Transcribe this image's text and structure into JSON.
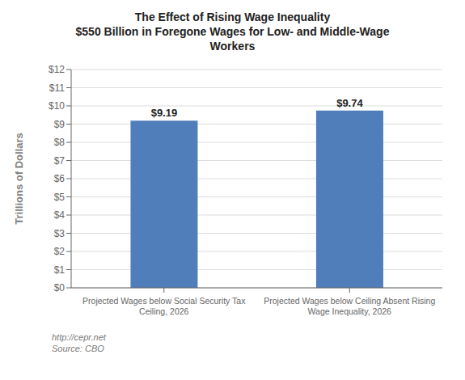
{
  "chart_data": {
    "type": "bar",
    "title": "The Effect of Rising Wage Inequality\n$550 Billion in Foregone Wages for Low- and Middle-Wage\nWorkers",
    "categories": [
      "Projected Wages below Social Security Tax\nCeiling, 2026",
      "Projected Wages below Ceiling Absent Rising\nWage Inequality, 2026"
    ],
    "values": [
      9.19,
      9.74
    ],
    "value_labels": [
      "$9.19",
      "$9.74"
    ],
    "data_labels": true,
    "color": "#4F7EBB",
    "ylabel": "Trillions of Dollars",
    "ylim": [
      0,
      12
    ],
    "yticks": [
      {
        "value": 0,
        "label": "$0"
      },
      {
        "value": 1,
        "label": "$1"
      },
      {
        "value": 2,
        "label": "$2"
      },
      {
        "value": 3,
        "label": "$3"
      },
      {
        "value": 4,
        "label": "$4"
      },
      {
        "value": 5,
        "label": "$5"
      },
      {
        "value": 6,
        "label": "$6"
      },
      {
        "value": 7,
        "label": "$7"
      },
      {
        "value": 8,
        "label": "$8"
      },
      {
        "value": 9,
        "label": "$9"
      },
      {
        "value": 10,
        "label": "$10"
      },
      {
        "value": 11,
        "label": "$11"
      },
      {
        "value": 12,
        "label": "$12"
      }
    ],
    "grid": true,
    "annotation": "http://cepr.net\nSource: CBO"
  }
}
